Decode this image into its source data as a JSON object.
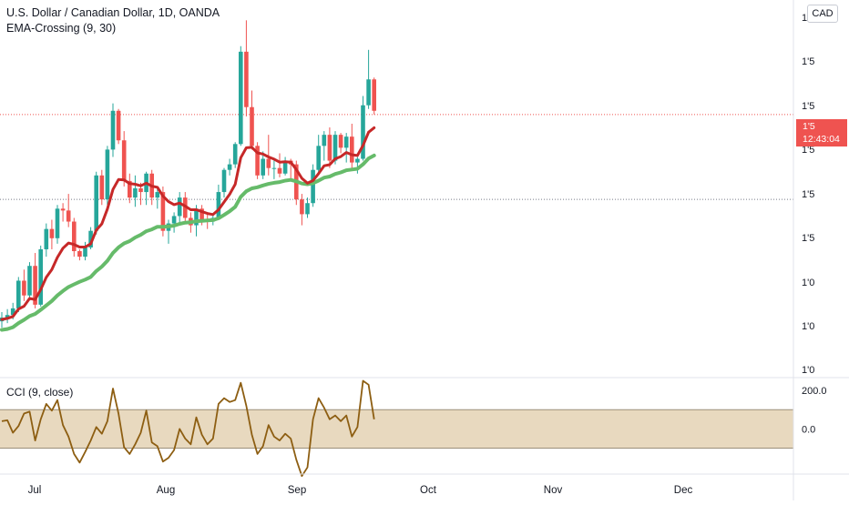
{
  "header": {
    "title": "U.S. Dollar / Canadian Dollar, 1D, OANDA",
    "indicator": "EMA-Crossing (9, 30)",
    "cci_label": "CCI (9, close)",
    "currency": "CAD"
  },
  "price_tag": {
    "price": "1'5",
    "countdown": "12:43:04",
    "color": "#ef5350"
  },
  "colors": {
    "up": "#26a69a",
    "down": "#ef5350",
    "ema_fast": "#c62828",
    "ema_slow": "#66bb6a",
    "cci_line": "#8d5e12",
    "cci_band": "#e8d9bf"
  },
  "chart_data": [
    {
      "type": "candlestick",
      "x_ticks": [
        "Jul",
        "Aug",
        "Sep",
        "Oct",
        "Nov",
        "Dec"
      ],
      "y_ticks": [
        "1'",
        "1'5",
        "1'5",
        "1'5",
        "1'5",
        "1'5",
        "1'0",
        "1'0",
        "1'0"
      ],
      "ylim": [
        1.2835,
        1.3855
      ],
      "dotted_lines": [
        1.3545,
        1.3315
      ],
      "candles": [
        [
          1.2985,
          1.301,
          1.2968,
          1.2995
        ],
        [
          1.2995,
          1.3018,
          1.298,
          1.3002
        ],
        [
          1.3002,
          1.3035,
          1.299,
          1.302
        ],
        [
          1.302,
          1.3105,
          1.301,
          1.3095
        ],
        [
          1.3095,
          1.3125,
          1.304,
          1.3055
        ],
        [
          1.3055,
          1.3145,
          1.305,
          1.3135
        ],
        [
          1.3135,
          1.317,
          1.302,
          1.303
        ],
        [
          1.303,
          1.319,
          1.3025,
          1.318
        ],
        [
          1.318,
          1.325,
          1.316,
          1.3235
        ],
        [
          1.3235,
          1.326,
          1.318,
          1.321
        ],
        [
          1.321,
          1.33,
          1.3195,
          1.329
        ],
        [
          1.329,
          1.3305,
          1.3255,
          1.3285
        ],
        [
          1.3285,
          1.333,
          1.324,
          1.3255
        ],
        [
          1.3255,
          1.3265,
          1.316,
          1.3175
        ],
        [
          1.3175,
          1.318,
          1.315,
          1.316
        ],
        [
          1.316,
          1.32,
          1.315,
          1.3185
        ],
        [
          1.3185,
          1.324,
          1.318,
          1.323
        ],
        [
          1.323,
          1.339,
          1.322,
          1.338
        ],
        [
          1.338,
          1.3395,
          1.33,
          1.3315
        ],
        [
          1.3315,
          1.346,
          1.33,
          1.345
        ],
        [
          1.345,
          1.3575,
          1.343,
          1.3555
        ],
        [
          1.3555,
          1.356,
          1.3465,
          1.3475
        ],
        [
          1.3475,
          1.35,
          1.335,
          1.3365
        ],
        [
          1.3365,
          1.3385,
          1.3305,
          1.332
        ],
        [
          1.332,
          1.338,
          1.3295,
          1.3345
        ],
        [
          1.3345,
          1.336,
          1.33,
          1.3335
        ],
        [
          1.3335,
          1.339,
          1.33,
          1.3385
        ],
        [
          1.3385,
          1.3395,
          1.33,
          1.332
        ],
        [
          1.332,
          1.3345,
          1.329,
          1.3335
        ],
        [
          1.3335,
          1.335,
          1.3215,
          1.323
        ],
        [
          1.323,
          1.326,
          1.3195,
          1.325
        ],
        [
          1.325,
          1.328,
          1.3225,
          1.327
        ],
        [
          1.327,
          1.3335,
          1.325,
          1.332
        ],
        [
          1.332,
          1.3335,
          1.325,
          1.3265
        ],
        [
          1.3265,
          1.328,
          1.3225,
          1.3245
        ],
        [
          1.3245,
          1.33,
          1.3215,
          1.329
        ],
        [
          1.329,
          1.33,
          1.3245,
          1.326
        ],
        [
          1.326,
          1.3275,
          1.3235,
          1.3255
        ],
        [
          1.3255,
          1.3275,
          1.3245,
          1.3265
        ],
        [
          1.3265,
          1.3355,
          1.326,
          1.3335
        ],
        [
          1.3335,
          1.34,
          1.332,
          1.3395
        ],
        [
          1.3395,
          1.3425,
          1.338,
          1.341
        ],
        [
          1.341,
          1.347,
          1.34,
          1.3465
        ],
        [
          1.3465,
          1.373,
          1.346,
          1.3715
        ],
        [
          1.3715,
          1.38,
          1.354,
          1.3565
        ],
        [
          1.3565,
          1.361,
          1.345,
          1.346
        ],
        [
          1.346,
          1.347,
          1.337,
          1.338
        ],
        [
          1.338,
          1.3445,
          1.337,
          1.3425
        ],
        [
          1.3425,
          1.349,
          1.338,
          1.34
        ],
        [
          1.34,
          1.342,
          1.337,
          1.34
        ],
        [
          1.34,
          1.344,
          1.3375,
          1.3385
        ],
        [
          1.3385,
          1.343,
          1.338,
          1.342
        ],
        [
          1.342,
          1.3425,
          1.337,
          1.341
        ],
        [
          1.341,
          1.342,
          1.33,
          1.3315
        ],
        [
          1.3315,
          1.333,
          1.3245,
          1.3275
        ],
        [
          1.3275,
          1.332,
          1.3265,
          1.3305
        ],
        [
          1.3305,
          1.341,
          1.3295,
          1.3395
        ],
        [
          1.3395,
          1.349,
          1.3385,
          1.346
        ],
        [
          1.346,
          1.35,
          1.342,
          1.349
        ],
        [
          1.349,
          1.351,
          1.34,
          1.342
        ],
        [
          1.342,
          1.35,
          1.341,
          1.349
        ],
        [
          1.349,
          1.3495,
          1.344,
          1.3455
        ],
        [
          1.3455,
          1.3495,
          1.3415,
          1.3485
        ],
        [
          1.3485,
          1.352,
          1.34,
          1.3415
        ],
        [
          1.3415,
          1.343,
          1.3385,
          1.3425
        ],
        [
          1.3425,
          1.3595,
          1.342,
          1.357
        ],
        [
          1.357,
          1.372,
          1.356,
          1.364
        ],
        [
          1.364,
          1.3645,
          1.3545,
          1.3555
        ]
      ],
      "ema_fast": [
        1.299,
        1.2993,
        1.2998,
        1.3018,
        1.3026,
        1.3047,
        1.3044,
        1.3071,
        1.3104,
        1.3125,
        1.3158,
        1.3183,
        1.3197,
        1.3193,
        1.3186,
        1.3186,
        1.3195,
        1.3232,
        1.3249,
        1.3289,
        1.3342,
        1.3369,
        1.3368,
        1.3358,
        1.3356,
        1.3352,
        1.3359,
        1.3351,
        1.3348,
        1.3324,
        1.3309,
        1.3301,
        1.3305,
        1.3297,
        1.3287,
        1.3287,
        1.3282,
        1.3277,
        1.3274,
        1.3287,
        1.3308,
        1.3329,
        1.3356,
        1.3428,
        1.3455,
        1.3456,
        1.3441,
        1.3438,
        1.343,
        1.3424,
        1.3416,
        1.3417,
        1.3416,
        1.3396,
        1.3372,
        1.3359,
        1.3366,
        1.3385,
        1.3406,
        1.3409,
        1.3425,
        1.3431,
        1.3442,
        1.3436,
        1.3434,
        1.3461,
        1.3497,
        1.3509
      ],
      "ema_slow": [
        1.2962,
        1.2964,
        1.2969,
        1.298,
        1.2989,
        1.2999,
        1.3005,
        1.3016,
        1.3028,
        1.304,
        1.3055,
        1.3067,
        1.3078,
        1.3085,
        1.3092,
        1.3098,
        1.3105,
        1.3121,
        1.3133,
        1.3149,
        1.317,
        1.3185,
        1.3196,
        1.3202,
        1.3212,
        1.3219,
        1.3229,
        1.3234,
        1.3241,
        1.3241,
        1.3242,
        1.3244,
        1.3249,
        1.3252,
        1.3253,
        1.3256,
        1.3257,
        1.3258,
        1.3259,
        1.3264,
        1.3273,
        1.3283,
        1.3295,
        1.3322,
        1.3337,
        1.3345,
        1.3348,
        1.3353,
        1.3357,
        1.336,
        1.3362,
        1.3366,
        1.3368,
        1.3364,
        1.3358,
        1.3356,
        1.3359,
        1.3366,
        1.3374,
        1.3377,
        1.3384,
        1.3388,
        1.3394,
        1.3396,
        1.3398,
        1.341,
        1.3426,
        1.3434
      ]
    },
    {
      "type": "line",
      "name": "CCI (9, close)",
      "y_ticks": [
        "200.0",
        "0.0"
      ],
      "ylim": [
        -230,
        262
      ],
      "band": [
        -100,
        100
      ],
      "values": [
        40,
        45,
        -20,
        15,
        80,
        90,
        -60,
        50,
        130,
        95,
        150,
        20,
        -40,
        -130,
        -175,
        -120,
        -60,
        10,
        -25,
        40,
        210,
        80,
        -95,
        -130,
        -80,
        -20,
        95,
        -70,
        -90,
        -170,
        -150,
        -110,
        0,
        -50,
        -80,
        60,
        -30,
        -80,
        -50,
        130,
        160,
        140,
        150,
        240,
        120,
        -30,
        -130,
        -90,
        20,
        -40,
        -60,
        -25,
        -50,
        -160,
        -245,
        -200,
        50,
        160,
        110,
        50,
        70,
        40,
        70,
        -40,
        10,
        250,
        230,
        50
      ]
    }
  ]
}
